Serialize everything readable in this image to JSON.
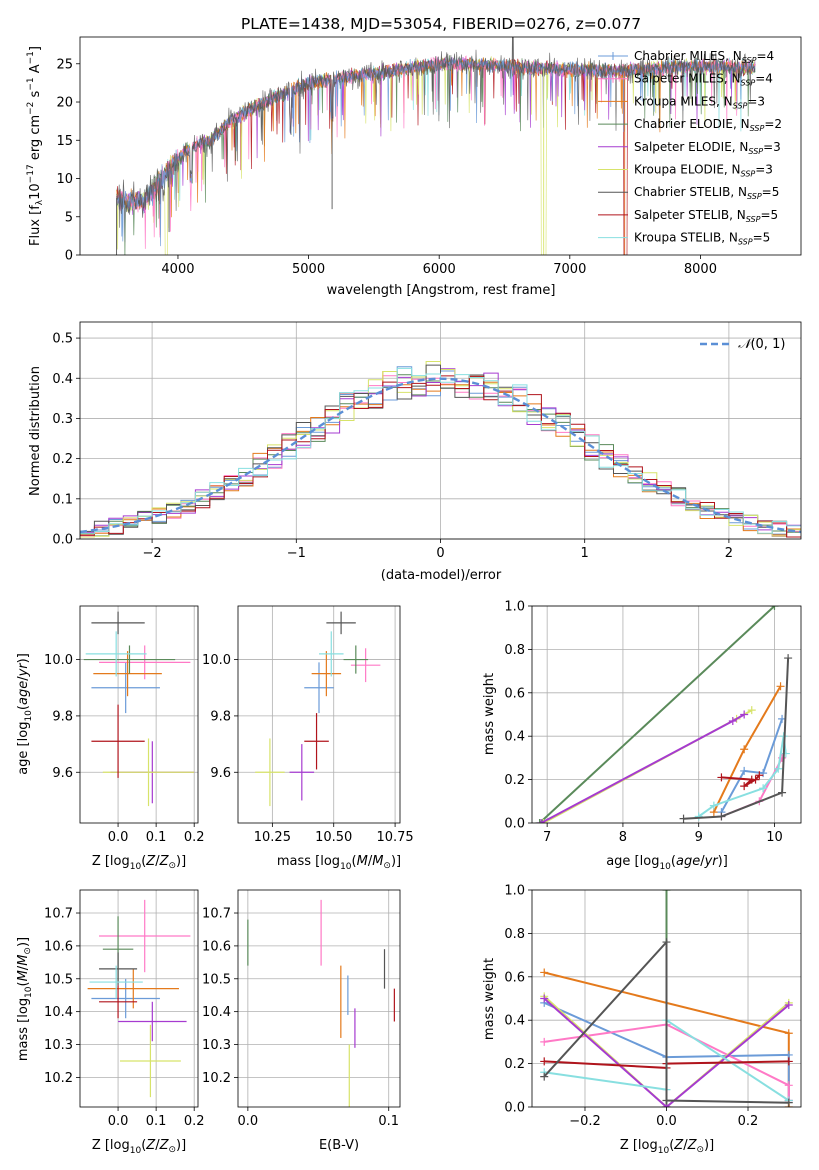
{
  "figure": {
    "title": "PLATE=1438, MJD=53054, FIBERID=0276, z=0.077"
  },
  "colors": {
    "Chabrier MILES": "#6b9bd8",
    "Salpeter MILES": "#ff79c6",
    "Kroupa MILES": "#e47a1c",
    "Chabrier ELODIE": "#5a8a5a",
    "Salpeter ELODIE": "#a63bd0",
    "Kroupa ELODIE": "#d7e36a",
    "Chabrier STELIB": "#555555",
    "Salpeter STELIB": "#b0141c",
    "Kroupa STELIB": "#88dfe0",
    "normal_curve": "#5b8fd6",
    "grid": "#b0b0b0"
  },
  "chart_data": [
    {
      "id": "spectrum",
      "type": "line",
      "title": "PLATE=1438, MJD=53054, FIBERID=0276, z=0.077",
      "xlabel": "wavelength [Angstrom, rest frame]",
      "ylabel": "Flux [f$_\\lambda$10$^{-17}$ erg cm$^{-2}$ s$^{-1}$ A$^{-1}$]",
      "ylabel_parts": [
        "Flux [f",
        "λ",
        "10",
        "−17",
        " erg cm",
        "−2",
        " s",
        "−1",
        " A",
        "−1",
        "]"
      ],
      "xlim": [
        3250,
        8770
      ],
      "ylim": [
        0,
        28.5
      ],
      "xticks": [
        4000,
        5000,
        6000,
        7000,
        8000
      ],
      "yticks": [
        0,
        5,
        10,
        15,
        20,
        25
      ],
      "grid": false,
      "legend_position": "upper right",
      "legend": [
        {
          "label": "Chabrier MILES",
          "n": "4",
          "marker": "+"
        },
        {
          "label": "Salpeter MILES",
          "n": "4",
          "marker": "+"
        },
        {
          "label": "Kroupa MILES",
          "n": "3",
          "marker": ""
        },
        {
          "label": "Chabrier ELODIE",
          "n": "2",
          "marker": ""
        },
        {
          "label": "Salpeter ELODIE",
          "n": "3",
          "marker": ""
        },
        {
          "label": "Kroupa ELODIE",
          "n": "3",
          "marker": ""
        },
        {
          "label": "Chabrier STELIB",
          "n": "5",
          "marker": ""
        },
        {
          "label": "Salpeter STELIB",
          "n": "5",
          "marker": ""
        },
        {
          "label": "Kroupa STELIB",
          "n": "5",
          "marker": ""
        }
      ],
      "continuum": {
        "x": [
          3530,
          3650,
          3750,
          3850,
          3950,
          4050,
          4150,
          4250,
          4400,
          4600,
          4800,
          5000,
          5200,
          5400,
          5600,
          5800,
          6000,
          6200,
          6400,
          6600,
          6800,
          7000,
          7200,
          7400,
          7600,
          7800,
          8000,
          8200,
          8400
        ],
        "y": [
          7.5,
          6.8,
          7.2,
          9.5,
          11.5,
          13.5,
          14.5,
          15.0,
          17.5,
          19.5,
          21.0,
          22.5,
          23.0,
          23.5,
          24.0,
          24.5,
          25.0,
          25.0,
          24.8,
          24.6,
          24.4,
          24.3,
          24.2,
          24.0,
          24.3,
          24.6,
          24.7,
          24.6,
          24.5
        ]
      },
      "spikes": [
        {
          "x": 3530,
          "y": 0
        },
        {
          "x": 3932,
          "y": 3
        },
        {
          "x": 5180,
          "y": 6
        },
        {
          "x": 6565,
          "y": 31
        },
        {
          "x": 6800,
          "y": 0
        },
        {
          "x": 7420,
          "y": 0
        }
      ]
    },
    {
      "id": "residuals",
      "type": "histogram",
      "xlabel": "(data-model)/error",
      "ylabel": "Normed distribution",
      "xlim": [
        -2.5,
        2.5
      ],
      "ylim": [
        0,
        0.54
      ],
      "xticks": [
        -2,
        -1,
        0,
        1,
        2
      ],
      "yticks": [
        0.0,
        0.1,
        0.2,
        0.3,
        0.4,
        0.5
      ],
      "grid": true,
      "legend_position": "upper right",
      "normal_label": "N(0,1)",
      "bin_width": 0.1
    },
    {
      "id": "age-vs-Z",
      "type": "scatter",
      "xlabel": "Z [log$_{10}$($Z/Z_\\odot$)]",
      "ylabel": "age  [log$_{10}$($age/yr$)]",
      "xlim": [
        -0.1,
        0.21
      ],
      "ylim": [
        9.42,
        10.19
      ],
      "xticks": [
        0.0,
        0.1,
        0.2
      ],
      "yticks": [
        9.6,
        9.8,
        10.0
      ],
      "grid": true,
      "points": [
        {
          "model": "Chabrier MILES",
          "x": 0.02,
          "xerr": 0.09,
          "y": 9.9,
          "yerr": 0.09
        },
        {
          "model": "Salpeter MILES",
          "x": 0.07,
          "xerr": 0.12,
          "y": 9.99,
          "yerr": 0.06
        },
        {
          "model": "Kroupa MILES",
          "x": 0.025,
          "xerr": 0.09,
          "y": 9.95,
          "yerr": 0.08
        },
        {
          "model": "Chabrier ELODIE",
          "x": 0.03,
          "xerr": 0.12,
          "y": 10.0,
          "yerr": 0.05
        },
        {
          "model": "Salpeter ELODIE",
          "x": 0.09,
          "xerr": 0.11,
          "y": 9.6,
          "yerr": 0.11
        },
        {
          "model": "Kroupa ELODIE",
          "x": 0.08,
          "xerr": 0.12,
          "y": 9.6,
          "yerr": 0.12
        },
        {
          "model": "Chabrier STELIB",
          "x": 0.0,
          "xerr": 0.07,
          "y": 10.13,
          "yerr": 0.04
        },
        {
          "model": "Salpeter STELIB",
          "x": 0.0,
          "xerr": 0.07,
          "y": 9.71,
          "yerr": 0.13
        },
        {
          "model": "Kroupa STELIB",
          "x": -0.005,
          "xerr": 0.08,
          "y": 10.02,
          "yerr": 0.08
        }
      ]
    },
    {
      "id": "age-vs-mass",
      "type": "scatter",
      "xlabel": "mass [log$_{10}$($M/M_\\odot$)]",
      "xlim": [
        10.11,
        10.77
      ],
      "ylim": [
        9.42,
        10.19
      ],
      "xticks": [
        10.25,
        10.5,
        10.75
      ],
      "yticks": [
        9.6,
        9.8,
        10.0
      ],
      "grid": true,
      "points": [
        {
          "model": "Chabrier MILES",
          "x": 10.44,
          "xerr": 0.06,
          "y": 9.9,
          "yerr": 0.09
        },
        {
          "model": "Salpeter MILES",
          "x": 10.63,
          "xerr": 0.06,
          "y": 9.98,
          "yerr": 0.06
        },
        {
          "model": "Kroupa MILES",
          "x": 10.47,
          "xerr": 0.06,
          "y": 9.95,
          "yerr": 0.08
        },
        {
          "model": "Chabrier ELODIE",
          "x": 10.59,
          "xerr": 0.05,
          "y": 10.0,
          "yerr": 0.05
        },
        {
          "model": "Salpeter ELODIE",
          "x": 10.37,
          "xerr": 0.05,
          "y": 9.6,
          "yerr": 0.1
        },
        {
          "model": "Kroupa ELODIE",
          "x": 10.24,
          "xerr": 0.06,
          "y": 9.6,
          "yerr": 0.12
        },
        {
          "model": "Chabrier STELIB",
          "x": 10.53,
          "xerr": 0.06,
          "y": 10.13,
          "yerr": 0.04
        },
        {
          "model": "Salpeter STELIB",
          "x": 10.43,
          "xerr": 0.05,
          "y": 9.71,
          "yerr": 0.1
        },
        {
          "model": "Kroupa STELIB",
          "x": 10.49,
          "xerr": 0.05,
          "y": 10.02,
          "yerr": 0.08
        }
      ]
    },
    {
      "id": "weight-vs-age",
      "type": "line",
      "xlabel": "age  [log$_{10}$($age/yr$)]",
      "ylabel": "mass weight",
      "xlim": [
        6.8,
        10.35
      ],
      "ylim": [
        0,
        1.0
      ],
      "xticks": [
        7,
        8,
        9,
        10
      ],
      "xticklabels": [
        "7",
        "8",
        "9",
        "10"
      ],
      "yticks": [
        0.0,
        0.2,
        0.4,
        0.6,
        0.8,
        1.0
      ],
      "grid": true,
      "series": [
        {
          "model": "Chabrier ELODIE",
          "x": [
            6.9,
            10.0
          ],
          "y": [
            0.0,
            1.0
          ]
        },
        {
          "model": "Kroupa ELODIE",
          "x": [
            6.95,
            9.5,
            9.7
          ],
          "y": [
            0.0,
            0.48,
            0.52
          ]
        },
        {
          "model": "Salpeter ELODIE",
          "x": [
            6.92,
            9.45,
            9.6
          ],
          "y": [
            0.0,
            0.47,
            0.5
          ]
        },
        {
          "model": "Kroupa MILES",
          "x": [
            9.2,
            9.6,
            10.08
          ],
          "y": [
            0.05,
            0.34,
            0.63
          ]
        },
        {
          "model": "Chabrier MILES",
          "x": [
            9.3,
            9.6,
            9.85,
            10.1
          ],
          "y": [
            0.05,
            0.24,
            0.23,
            0.48
          ]
        },
        {
          "model": "Salpeter MILES",
          "x": [
            9.3,
            9.8,
            10.1
          ],
          "y": [
            0.03,
            0.1,
            0.3
          ]
        },
        {
          "model": "Kroupa STELIB",
          "x": [
            9.0,
            9.2,
            9.85,
            10.05,
            10.12,
            10.15
          ],
          "y": [
            0.03,
            0.08,
            0.16,
            0.25,
            0.4,
            0.32
          ]
        },
        {
          "model": "Salpeter STELIB",
          "x": [
            9.3,
            9.7,
            9.6,
            9.75,
            9.8
          ],
          "y": [
            0.21,
            0.2,
            0.17,
            0.2,
            0.22
          ]
        },
        {
          "model": "Chabrier STELIB",
          "x": [
            8.8,
            9.3,
            10.1,
            10.18
          ],
          "y": [
            0.02,
            0.03,
            0.14,
            0.76
          ]
        }
      ]
    },
    {
      "id": "mass-vs-Z",
      "type": "scatter",
      "xlabel": "Z [log$_{10}$($Z/Z_\\odot$)]",
      "ylabel": "mass [log$_{10}$($M/M_\\odot$)]",
      "xlim": [
        -0.1,
        0.21
      ],
      "ylim": [
        10.11,
        10.77
      ],
      "xticks": [
        0.0,
        0.1,
        0.2
      ],
      "yticks": [
        10.2,
        10.3,
        10.4,
        10.5,
        10.6,
        10.7
      ],
      "grid": true,
      "points": [
        {
          "model": "Chabrier MILES",
          "x": 0.02,
          "xerr": 0.09,
          "y": 10.44,
          "yerr": 0.06
        },
        {
          "model": "Salpeter MILES",
          "x": 0.07,
          "xerr": 0.12,
          "y": 10.63,
          "yerr": 0.11
        },
        {
          "model": "Kroupa MILES",
          "x": 0.04,
          "xerr": 0.12,
          "y": 10.47,
          "yerr": 0.06
        },
        {
          "model": "Chabrier ELODIE",
          "x": 0.0,
          "xerr": 0.04,
          "y": 10.59,
          "yerr": 0.1
        },
        {
          "model": "Salpeter ELODIE",
          "x": 0.09,
          "xerr": 0.09,
          "y": 10.37,
          "yerr": 0.06
        },
        {
          "model": "Kroupa ELODIE",
          "x": 0.085,
          "xerr": 0.08,
          "y": 10.25,
          "yerr": 0.11
        },
        {
          "model": "Chabrier STELIB",
          "x": 0.0,
          "xerr": 0.05,
          "y": 10.53,
          "yerr": 0.05
        },
        {
          "model": "Salpeter STELIB",
          "x": 0.0,
          "xerr": 0.05,
          "y": 10.43,
          "yerr": 0.05
        },
        {
          "model": "Kroupa STELIB",
          "x": -0.005,
          "xerr": 0.07,
          "y": 10.49,
          "yerr": 0.05
        }
      ]
    },
    {
      "id": "mass-vs-ebv",
      "type": "scatter",
      "xlabel": "E(B-V)",
      "xlim": [
        -0.007,
        0.108
      ],
      "ylim": [
        10.11,
        10.77
      ],
      "xticks": [
        0.0,
        0.1
      ],
      "yticks": [
        10.2,
        10.3,
        10.4,
        10.5,
        10.6,
        10.7
      ],
      "grid": true,
      "points": [
        {
          "model": "Chabrier MILES",
          "x": 0.071,
          "yerr": 0.06,
          "y": 10.45
        },
        {
          "model": "Salpeter MILES",
          "x": 0.052,
          "yerr": 0.1,
          "y": 10.64
        },
        {
          "model": "Kroupa MILES",
          "x": 0.066,
          "yerr": 0.11,
          "y": 10.43
        },
        {
          "model": "Chabrier ELODIE",
          "x": 0.0,
          "yerr": 0.07,
          "y": 10.61
        },
        {
          "model": "Salpeter ELODIE",
          "x": 0.076,
          "yerr": 0.06,
          "y": 10.35
        },
        {
          "model": "Kroupa ELODIE",
          "x": 0.072,
          "yerr": 0.1,
          "y": 10.2
        },
        {
          "model": "Chabrier STELIB",
          "x": 0.097,
          "yerr": 0.06,
          "y": 10.53
        },
        {
          "model": "Salpeter STELIB",
          "x": 0.104,
          "yerr": 0.05,
          "y": 10.42
        },
        {
          "model": "Kroupa STELIB",
          "x": 0.0,
          "yerr": 0.0,
          "y": 10.49
        }
      ]
    },
    {
      "id": "weight-vs-Z",
      "type": "line",
      "xlabel": "Z [log$_{10}$($Z/Z_\\odot$)]",
      "ylabel": "mass weight",
      "xlim": [
        -0.33,
        0.33
      ],
      "ylim": [
        0,
        1.0
      ],
      "xticks": [
        -0.2,
        0.0,
        0.2
      ],
      "xticklabels": [
        "−0.2",
        "0.0",
        "0.2"
      ],
      "yticks": [
        0.0,
        0.2,
        0.4,
        0.6,
        0.8,
        1.0
      ],
      "grid": true,
      "series": [
        {
          "model": "Chabrier ELODIE",
          "x": [
            0.0,
            0.0
          ],
          "y": [
            1.0,
            0.0
          ]
        },
        {
          "model": "Kroupa MILES",
          "x": [
            -0.3,
            0.3,
            0.3
          ],
          "y": [
            0.62,
            0.34,
            0.0
          ]
        },
        {
          "model": "Chabrier MILES",
          "x": [
            -0.3,
            0.0,
            0.3,
            0.3
          ],
          "y": [
            0.48,
            0.23,
            0.24,
            0.03
          ]
        },
        {
          "model": "Salpeter MILES",
          "x": [
            -0.3,
            0.0,
            0.3,
            0.3
          ],
          "y": [
            0.3,
            0.38,
            0.1,
            0.03
          ]
        },
        {
          "model": "Kroupa ELODIE",
          "x": [
            -0.3,
            0.0,
            0.3
          ],
          "y": [
            0.51,
            0.0,
            0.48
          ]
        },
        {
          "model": "Salpeter ELODIE",
          "x": [
            -0.3,
            0.0,
            0.3
          ],
          "y": [
            0.5,
            0.0,
            0.47
          ]
        },
        {
          "model": "Kroupa STELIB",
          "x": [
            -0.3,
            0.0,
            0.0,
            0.3
          ],
          "y": [
            0.16,
            0.08,
            0.4,
            0.03
          ]
        },
        {
          "model": "Salpeter STELIB",
          "x": [
            -0.3,
            0.0,
            0.0,
            0.3
          ],
          "y": [
            0.21,
            0.18,
            0.2,
            0.21
          ]
        },
        {
          "model": "Chabrier STELIB",
          "x": [
            -0.3,
            0.0,
            0.0,
            0.3
          ],
          "y": [
            0.14,
            0.76,
            0.03,
            0.02
          ]
        }
      ]
    }
  ]
}
